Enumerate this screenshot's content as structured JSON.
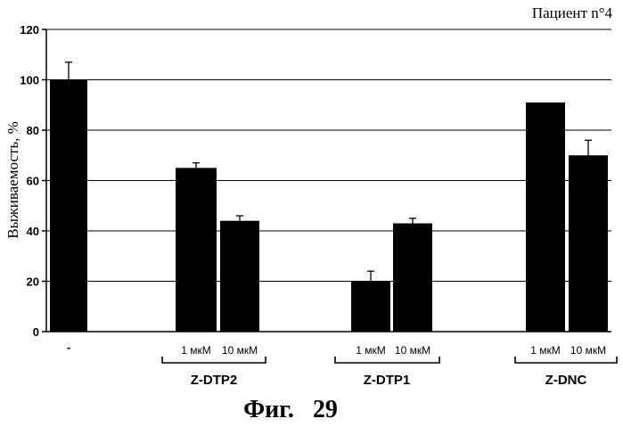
{
  "header": {
    "patient": "Пациент n°4"
  },
  "figure": {
    "caption": "Фиг.   29"
  },
  "chart_data": {
    "type": "bar",
    "title": "",
    "ylabel": "Выживаемость, %",
    "xlabel": "",
    "ylim": [
      0,
      120
    ],
    "yticks": [
      0,
      20,
      40,
      60,
      80,
      100,
      120
    ],
    "grid": true,
    "bars": [
      {
        "label": "-",
        "group": "",
        "value": 100,
        "error": 7
      },
      {
        "label": "1 мкМ",
        "group": "Z-DTP2",
        "value": 65,
        "error": 2
      },
      {
        "label": "10 мкМ",
        "group": "Z-DTP2",
        "value": 44,
        "error": 2
      },
      {
        "label": "1 мкМ",
        "group": "Z-DTP1",
        "value": 20,
        "error": 4
      },
      {
        "label": "10 мкМ",
        "group": "Z-DTP1",
        "value": 43,
        "error": 2
      },
      {
        "label": "1 мкМ",
        "group": "Z-DNC",
        "value": 91,
        "error": 0
      },
      {
        "label": "10 мкМ",
        "group": "Z-DNC",
        "value": 70,
        "error": 6
      }
    ],
    "groups": [
      "Z-DTP2",
      "Z-DTP1",
      "Z-DNC"
    ],
    "bar_color": "#000000"
  }
}
